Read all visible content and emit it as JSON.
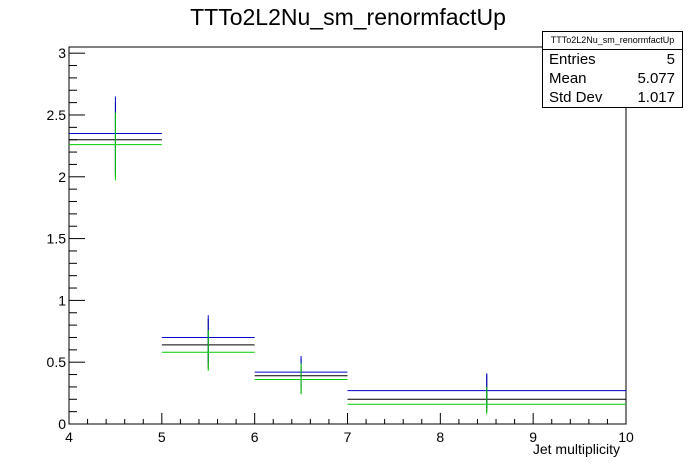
{
  "chart_data": {
    "type": "histogram",
    "title": "TTTo2L2Nu_sm_renormfactUp",
    "xlabel": "Jet multiplicity",
    "ylabel": "",
    "xlim": [
      4,
      10
    ],
    "ylim": [
      0,
      3.05
    ],
    "x_ticks": [
      4,
      5,
      6,
      7,
      8,
      9,
      10
    ],
    "y_ticks": [
      0,
      0.5,
      1,
      1.5,
      2,
      2.5,
      3
    ],
    "stats_box": {
      "title": "TTTo2L2Nu_sm_renormfactUp",
      "rows": [
        {
          "label": "Entries",
          "value": "5"
        },
        {
          "label": "Mean",
          "value": "5.077"
        },
        {
          "label": "Std Dev",
          "value": "1.017"
        }
      ]
    },
    "series": [
      {
        "color": "#000000",
        "bins": [
          {
            "x_low": 4,
            "x_high": 5,
            "x_center": 4.5,
            "y": 2.3,
            "y_err_low": 2.0,
            "y_err_high": 2.6
          },
          {
            "x_low": 5,
            "x_high": 6,
            "x_center": 5.5,
            "y": 0.64,
            "y_err_low": 0.45,
            "y_err_high": 0.85
          },
          {
            "x_low": 6,
            "x_high": 7,
            "x_center": 6.5,
            "y": 0.39,
            "y_err_low": 0.25,
            "y_err_high": 0.53
          },
          {
            "x_low": 7,
            "x_high": 10,
            "x_center": 8.5,
            "y": 0.2,
            "y_err_low": 0.1,
            "y_err_high": 0.4
          }
        ]
      },
      {
        "color": "#0000cc",
        "bins": [
          {
            "x_low": 4,
            "x_high": 5,
            "x_center": 4.5,
            "y": 2.35,
            "y_err_low": 2.05,
            "y_err_high": 2.65
          },
          {
            "x_low": 5,
            "x_high": 6,
            "x_center": 5.5,
            "y": 0.7,
            "y_err_low": 0.5,
            "y_err_high": 0.88
          },
          {
            "x_low": 6,
            "x_high": 7,
            "x_center": 6.5,
            "y": 0.42,
            "y_err_low": 0.28,
            "y_err_high": 0.55
          },
          {
            "x_low": 7,
            "x_high": 10,
            "x_center": 8.5,
            "y": 0.27,
            "y_err_low": 0.13,
            "y_err_high": 0.41
          }
        ]
      },
      {
        "color": "#00cc00",
        "bins": [
          {
            "x_low": 4,
            "x_high": 5,
            "x_center": 4.5,
            "y": 2.26,
            "y_err_low": 1.97,
            "y_err_high": 2.52
          },
          {
            "x_low": 5,
            "x_high": 6,
            "x_center": 5.5,
            "y": 0.58,
            "y_err_low": 0.43,
            "y_err_high": 0.76
          },
          {
            "x_low": 6,
            "x_high": 7,
            "x_center": 6.5,
            "y": 0.36,
            "y_err_low": 0.24,
            "y_err_high": 0.49
          },
          {
            "x_low": 7,
            "x_high": 10,
            "x_center": 8.5,
            "y": 0.16,
            "y_err_low": 0.08,
            "y_err_high": 0.3
          }
        ]
      }
    ]
  }
}
